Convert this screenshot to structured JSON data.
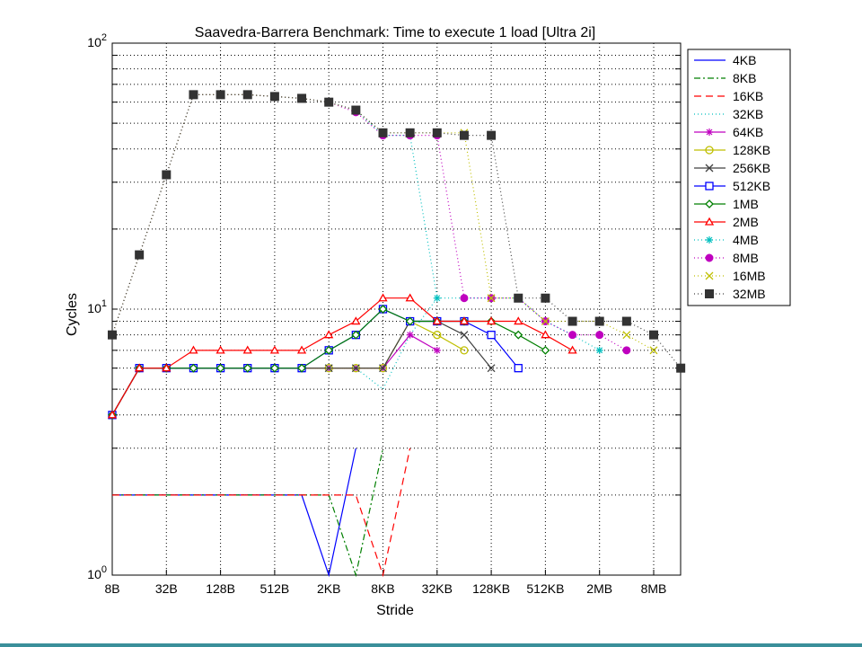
{
  "chart_data": {
    "type": "line",
    "title": "Saavedra-Barrera Benchmark: Time to execute 1 load [Ultra 2i]",
    "xlabel": "Stride",
    "ylabel": "Cycles",
    "yscale": "log",
    "ylim": [
      1,
      100
    ],
    "xscale": "log2",
    "x_tick_labels": [
      "8B",
      "32B",
      "128B",
      "512B",
      "2KB",
      "8KB",
      "32KB",
      "128KB",
      "512KB",
      "2MB",
      "8MB"
    ],
    "y_tick_labels": [
      "10^0",
      "10^1",
      "10^2"
    ],
    "grid": true,
    "legend_position": "right",
    "x_categories": [
      "8B",
      "16B",
      "32B",
      "64B",
      "128B",
      "256B",
      "512B",
      "1KB",
      "2KB",
      "4KB",
      "8KB",
      "16KB",
      "32KB",
      "64KB",
      "128KB",
      "256KB",
      "512KB",
      "1MB",
      "2MB",
      "4MB",
      "8MB",
      "16MB"
    ],
    "series": [
      {
        "name": "4KB",
        "color": "#0000ff",
        "dash": "",
        "marker": "none",
        "values": [
          2,
          2,
          2,
          2,
          2,
          2,
          2,
          2,
          1,
          3
        ]
      },
      {
        "name": "8KB",
        "color": "#007f00",
        "dash": "7,3,2,3",
        "marker": "none",
        "values": [
          2,
          2,
          2,
          2,
          2,
          2,
          2,
          2,
          2,
          1,
          3
        ]
      },
      {
        "name": "16KB",
        "color": "#ff0000",
        "dash": "8,5",
        "marker": "none",
        "values": [
          2,
          2,
          2,
          2,
          2,
          2,
          2,
          2,
          2,
          2,
          1,
          3
        ]
      },
      {
        "name": "32KB",
        "color": "#00bfbf",
        "dash": "1,3",
        "marker": "none",
        "values": [
          4,
          6,
          6,
          6,
          6,
          6,
          6,
          6,
          6,
          6,
          5,
          8,
          11
        ]
      },
      {
        "name": "64KB",
        "color": "#bf00bf",
        "dash": "",
        "marker": "star",
        "values": [
          4,
          6,
          6,
          6,
          6,
          6,
          6,
          6,
          6,
          6,
          6,
          8,
          7
        ]
      },
      {
        "name": "128KB",
        "color": "#bfbf00",
        "dash": "",
        "marker": "circle-open",
        "values": [
          4,
          6,
          6,
          6,
          6,
          6,
          6,
          6,
          6,
          6,
          6,
          9,
          8,
          7
        ]
      },
      {
        "name": "256KB",
        "color": "#404040",
        "dash": "",
        "marker": "x",
        "values": [
          4,
          6,
          6,
          6,
          6,
          6,
          6,
          6,
          6,
          6,
          6,
          9,
          9,
          8,
          6
        ]
      },
      {
        "name": "512KB",
        "color": "#0000ff",
        "dash": "",
        "marker": "square-open",
        "values": [
          4,
          6,
          6,
          6,
          6,
          6,
          6,
          6,
          7,
          8,
          10,
          9,
          9,
          9,
          8,
          6
        ]
      },
      {
        "name": "1MB",
        "color": "#007f00",
        "dash": "",
        "marker": "diamond-open",
        "values": [
          4,
          6,
          6,
          6,
          6,
          6,
          6,
          6,
          7,
          8,
          10,
          9,
          9,
          9,
          9,
          8,
          7
        ]
      },
      {
        "name": "2MB",
        "color": "#ff0000",
        "dash": "",
        "marker": "triangle-open",
        "values": [
          4,
          6,
          6,
          7,
          7,
          7,
          7,
          7,
          8,
          9,
          11,
          11,
          9,
          9,
          9,
          9,
          8,
          7
        ]
      },
      {
        "name": "4MB",
        "color": "#00bfbf",
        "dash": "1,3",
        "marker": "star",
        "values": [
          8,
          16,
          32,
          64,
          64,
          64,
          63,
          62,
          60,
          56,
          45,
          45,
          11,
          11,
          11,
          11,
          9,
          8,
          7
        ]
      },
      {
        "name": "8MB",
        "color": "#bf00bf",
        "dash": "1,3",
        "marker": "dot",
        "values": [
          8,
          16,
          32,
          64,
          64,
          64,
          63,
          62,
          60,
          55,
          45,
          45,
          45,
          11,
          11,
          11,
          9,
          8,
          8,
          7
        ]
      },
      {
        "name": "16MB",
        "color": "#bfbf00",
        "dash": "1,3",
        "marker": "x",
        "values": [
          8,
          16,
          32,
          64,
          64,
          64,
          63,
          62,
          60,
          56,
          46,
          46,
          46,
          46,
          11,
          11,
          9,
          9,
          9,
          8,
          7
        ]
      },
      {
        "name": "32MB",
        "color": "#404040",
        "dash": "1,3",
        "marker": "square-filled",
        "values": [
          8,
          16,
          32,
          64,
          64,
          64,
          63,
          62,
          60,
          56,
          46,
          46,
          46,
          45,
          45,
          11,
          11,
          9,
          9,
          9,
          8,
          6
        ]
      }
    ]
  }
}
